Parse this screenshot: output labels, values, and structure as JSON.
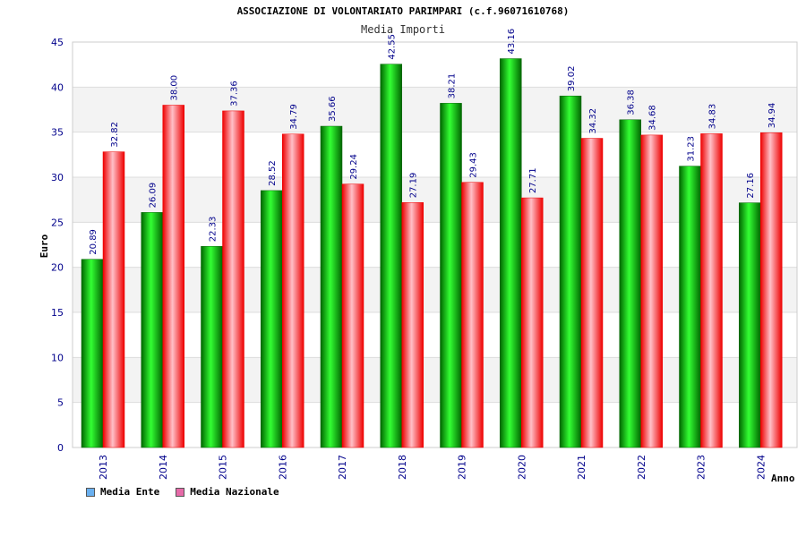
{
  "colors": {
    "ente_marker": "#6ab0f0",
    "nazionale_marker": "#e66aa8",
    "ente_bar_light": "#33ff33",
    "ente_bar_dark": "#006600",
    "nazionale_bar_light": "#ffc0c8",
    "nazionale_bar_dark": "#ee0000",
    "band": "#f3f3f3",
    "gridline": "#dddddd",
    "tick_text": "#00008b"
  },
  "chart_data": {
    "type": "bar",
    "title": "ASSOCIAZIONE DI VOLONTARIATO PARIMPARI (c.f.96071610768)",
    "subtitle": "Media Importi",
    "xlabel": "Anno",
    "ylabel": "Euro",
    "ylim": [
      0,
      45
    ],
    "yticks": [
      "0",
      "5",
      "10",
      "15",
      "20",
      "25",
      "30",
      "35",
      "40",
      "45"
    ],
    "categories": [
      "2013",
      "2014",
      "2015",
      "2016",
      "2017",
      "2018",
      "2019",
      "2020",
      "2021",
      "2022",
      "2023",
      "2024"
    ],
    "series": [
      {
        "name": "Media Ente",
        "values": [
          20.89,
          26.09,
          22.33,
          28.52,
          35.66,
          42.55,
          38.21,
          43.16,
          39.02,
          36.38,
          31.23,
          27.16
        ],
        "labels": [
          "20.89",
          "26.09",
          "22.33",
          "28.52",
          "35.66",
          "42.55",
          "38.21",
          "43.16",
          "39.02",
          "36.38",
          "31.23",
          "27.16"
        ]
      },
      {
        "name": "Media Nazionale",
        "values": [
          32.82,
          38.0,
          37.36,
          34.79,
          29.24,
          27.19,
          29.43,
          27.71,
          34.32,
          34.68,
          34.83,
          34.94
        ],
        "labels": [
          "32.82",
          "38.00",
          "37.36",
          "34.79",
          "29.24",
          "27.19",
          "29.43",
          "27.71",
          "34.32",
          "34.68",
          "34.83",
          "34.94"
        ]
      }
    ],
    "grid": true,
    "legend_position": "bottom-left"
  }
}
